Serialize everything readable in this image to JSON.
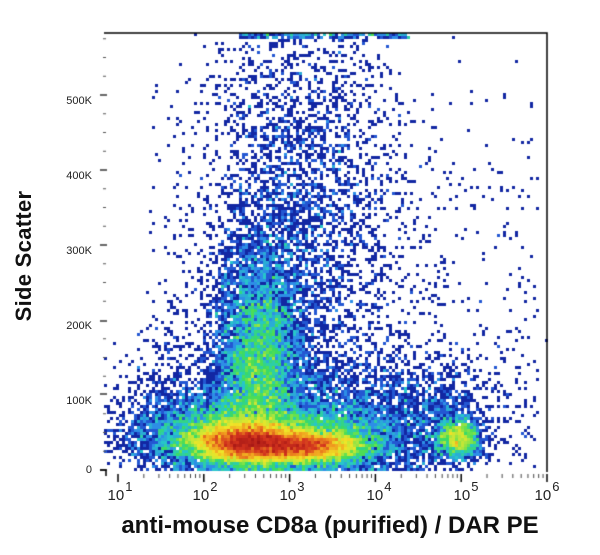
{
  "chart_data": {
    "type": "scatter",
    "subtype": "flow-cytometry-density-dot-plot",
    "title": "",
    "xlabel": "anti-mouse CD8a (purified) / DAR PE",
    "ylabel": "Side Scatter",
    "x_scale": "log",
    "xlim": [
      10,
      1000000
    ],
    "x_ticks": [
      {
        "base": "10",
        "exp": "1"
      },
      {
        "base": "10",
        "exp": "2"
      },
      {
        "base": "10",
        "exp": "3"
      },
      {
        "base": "10",
        "exp": "4"
      },
      {
        "base": "10",
        "exp": "5"
      },
      {
        "base": "10",
        "exp": "6"
      }
    ],
    "y_scale": "linear",
    "ylim": [
      0,
      590000
    ],
    "y_ticks": [
      "0",
      "100K",
      "200K",
      "300K",
      "400K",
      "500K"
    ],
    "y_tick_values": [
      0,
      100000,
      200000,
      300000,
      400000,
      500000
    ],
    "grid": false,
    "legend": null,
    "color_scale": [
      "#0a1a8c",
      "#1e3cc8",
      "#2d8ee6",
      "#27c8c8",
      "#3cdc5a",
      "#b4e63c",
      "#f0e628",
      "#f0961e",
      "#d2321e",
      "#a01414"
    ],
    "populations": [
      {
        "name": "CD8-negative low-SSC (lymphocytes)",
        "x_center": 350,
        "y_center": 40000,
        "density": "high"
      },
      {
        "name": "CD8-negative rising SSC tail",
        "x_center": 450,
        "y_center": 200000,
        "density": "medium"
      },
      {
        "name": "intermediate low-SSC",
        "x_center": 2500,
        "y_center": 38000,
        "density": "high"
      },
      {
        "name": "high SSC spread",
        "x_center": 3000,
        "y_center": 300000,
        "density": "low"
      },
      {
        "name": "CD8a-positive",
        "x_center": 100000,
        "y_center": 45000,
        "density": "medium"
      }
    ]
  }
}
